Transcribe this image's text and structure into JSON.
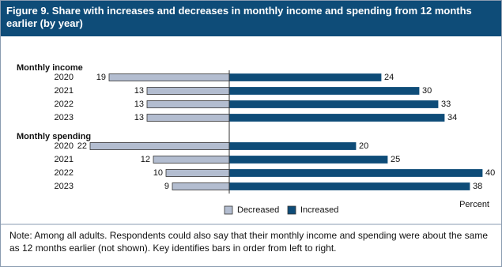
{
  "chart_data": {
    "type": "diverging_bar",
    "title": "Figure 9. Share with increases and decreases in monthly income and spending from 12 months earlier (by year)",
    "xlabel": "Percent",
    "legend": [
      {
        "name": "Decreased",
        "color": "#b3bdd0"
      },
      {
        "name": "Increased",
        "color": "#0e4c78"
      }
    ],
    "groups": [
      {
        "label": "Monthly income",
        "categories": [
          "2020",
          "2021",
          "2022",
          "2023"
        ],
        "series": [
          [
            19,
            13,
            13,
            13
          ],
          [
            24,
            30,
            33,
            34
          ]
        ]
      },
      {
        "label": "Monthly spending",
        "categories": [
          "2020",
          "2021",
          "2022",
          "2023"
        ],
        "series": [
          [
            22,
            12,
            10,
            9
          ],
          [
            20,
            25,
            40,
            38
          ]
        ]
      }
    ],
    "note": "Note: Among all adults. Respondents could also say that their monthly income and spending were about the same as 12 months earlier (not shown). Key identifies bars in order from left to right."
  }
}
